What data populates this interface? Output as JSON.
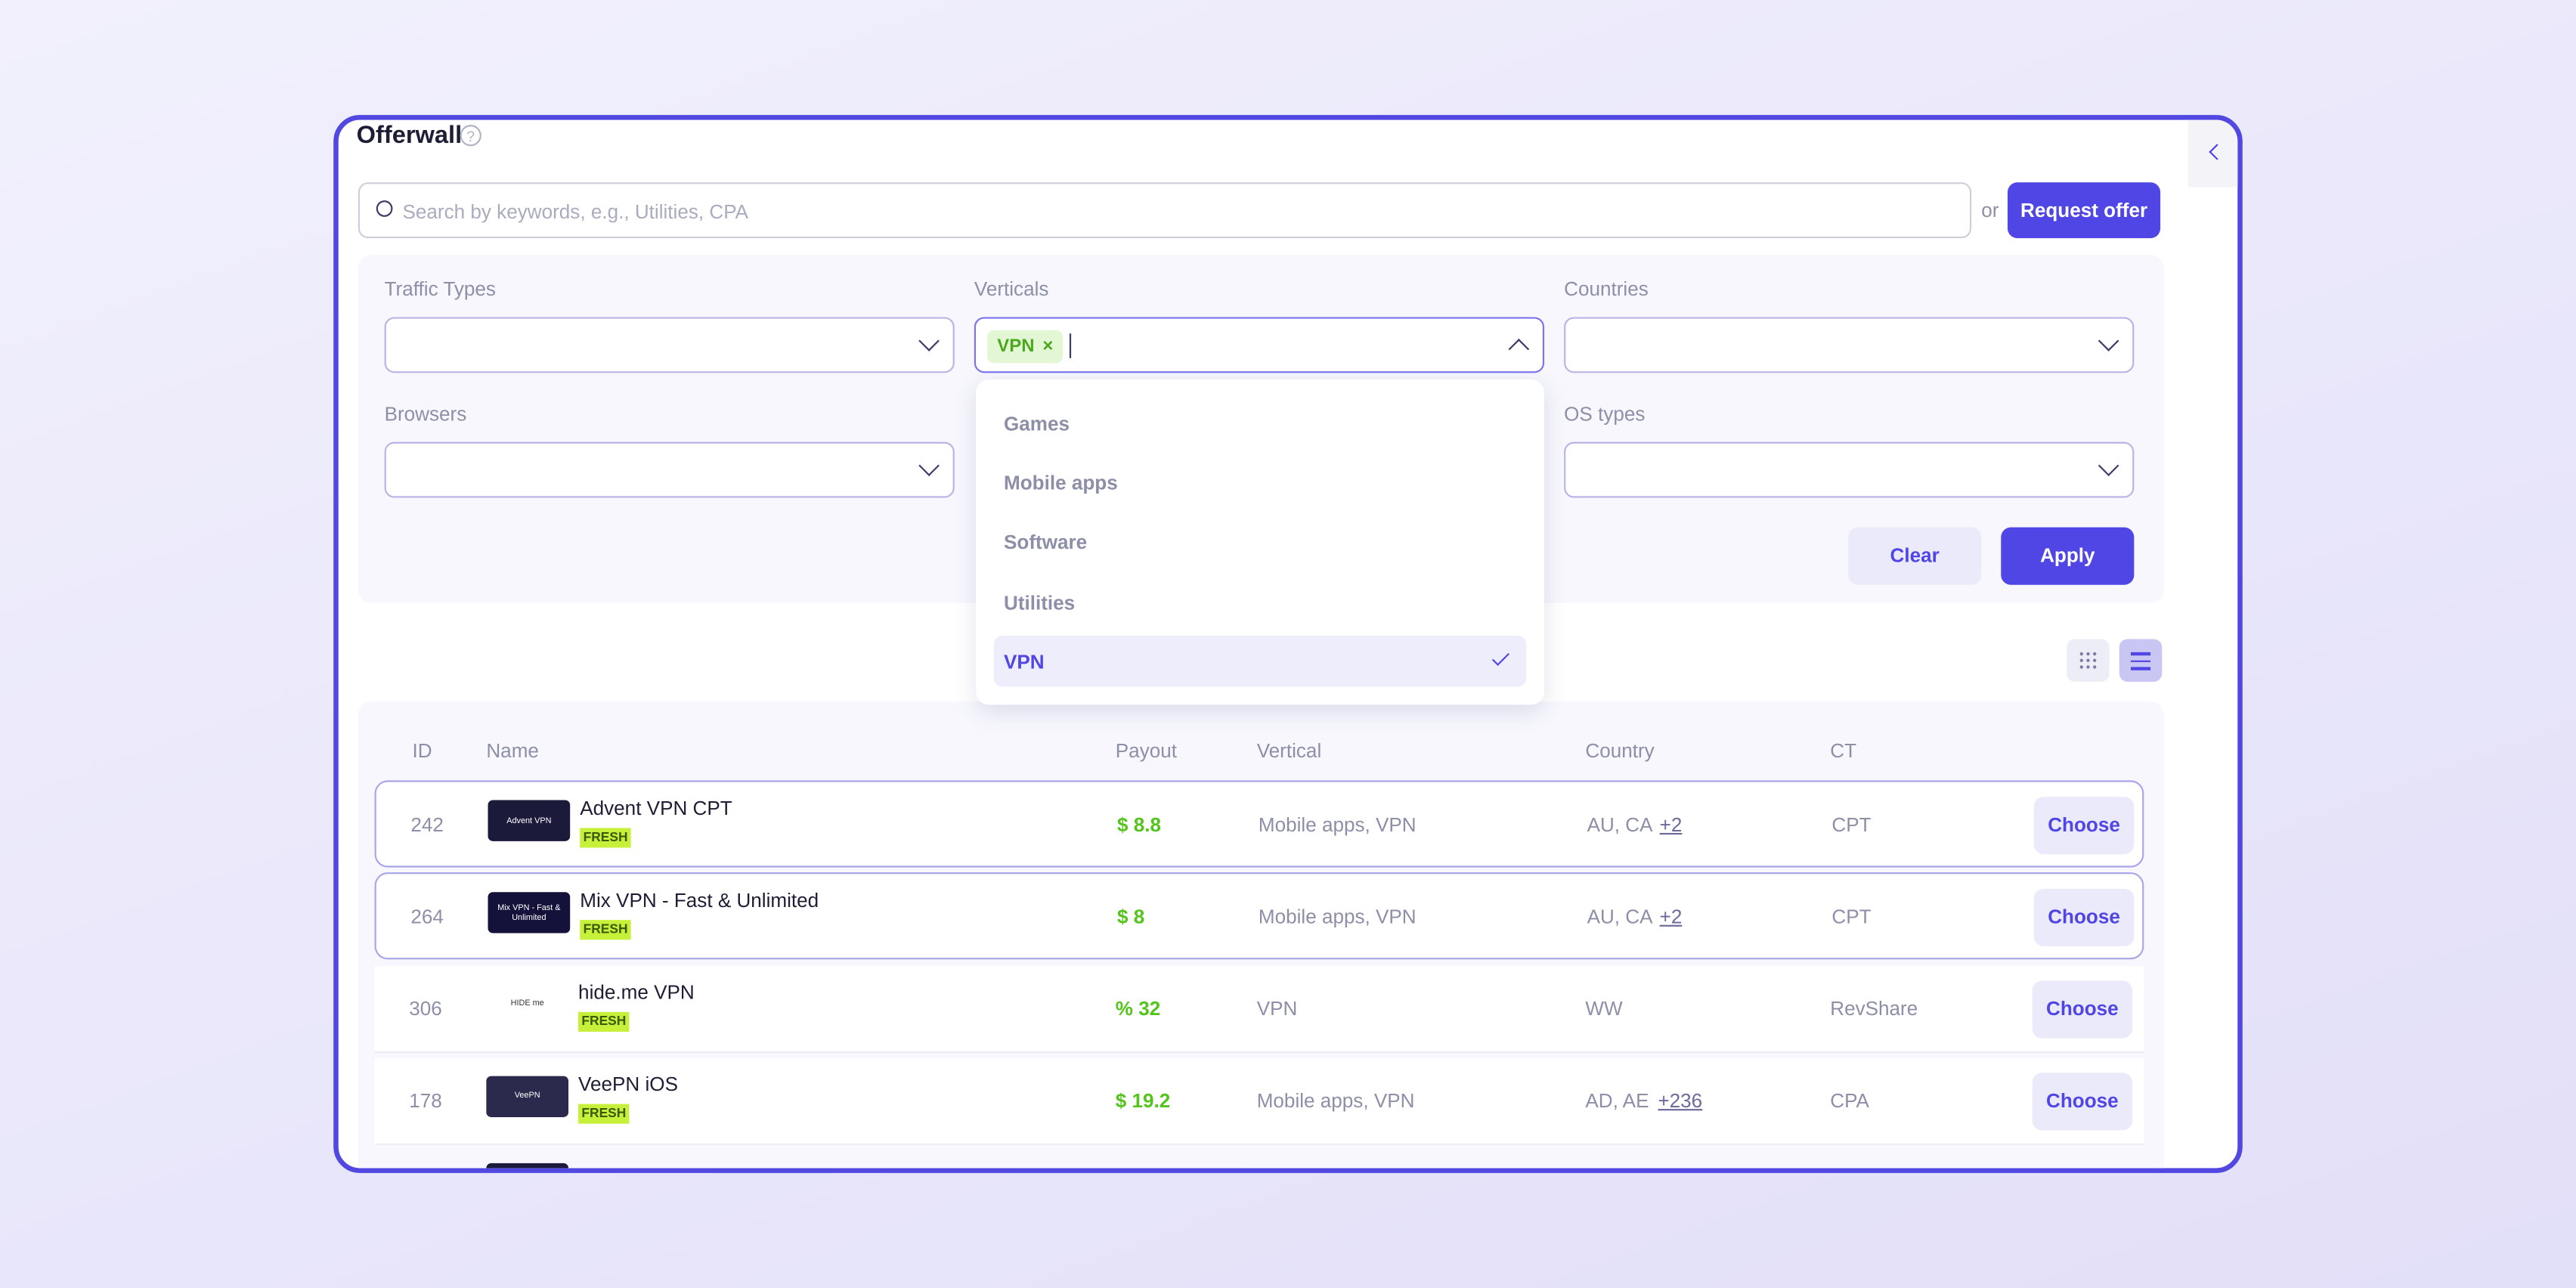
{
  "header": {
    "title": "Offerwall"
  },
  "search": {
    "placeholder": "Search by keywords, e.g., Utilities, CPA",
    "or": "or",
    "button": "Request offer"
  },
  "filters": {
    "traffic_types": "Traffic Types",
    "verticals": "Verticals",
    "countries": "Countries",
    "browsers": "Browsers",
    "os_types": "OS types",
    "selected_chip": "VPN",
    "clear": "Clear",
    "apply": "Apply"
  },
  "dropdown": {
    "options": [
      "Games",
      "Mobile apps",
      "Software",
      "Utilities",
      "VPN"
    ],
    "selected": 4
  },
  "table": {
    "columns": [
      "ID",
      "Name",
      "Payout",
      "Vertical",
      "Country",
      "CT"
    ],
    "rows": [
      {
        "id": "242",
        "logo": "Advent VPN",
        "name": "Advent VPN CPT",
        "badge": "FRESH",
        "payout": "$ 8.8",
        "vertical": "Mobile apps, VPN",
        "country": "AU, CA",
        "more": "+2",
        "ct": "CPT",
        "action": "Choose",
        "highlight": true,
        "logo_bg": "#1b1a3a"
      },
      {
        "id": "264",
        "logo": "Mix VPN - Fast & Unlimited",
        "name": "Mix VPN - Fast & Unlimited",
        "badge": "FRESH",
        "payout": "$ 8",
        "vertical": "Mobile apps, VPN",
        "country": "AU, CA",
        "more": "+2",
        "ct": "CPT",
        "action": "Choose",
        "highlight": true,
        "logo_bg": "#14123a"
      },
      {
        "id": "306",
        "logo": "HIDE me",
        "name": "hide.me VPN",
        "badge": "FRESH",
        "payout": "% 32",
        "vertical": "VPN",
        "country": "WW",
        "more": null,
        "ct": "RevShare",
        "action": "Choose",
        "highlight": false,
        "logo_bg": "#ffffff"
      },
      {
        "id": "178",
        "logo": "VeePN",
        "name": "VeePN iOS",
        "badge": "FRESH",
        "payout": "$ 19.2",
        "vertical": "Mobile apps, VPN",
        "country": "AD, AE",
        "more": "+236",
        "ct": "CPA",
        "action": "Choose",
        "highlight": false,
        "logo_bg": "#2b2a4c"
      }
    ]
  }
}
